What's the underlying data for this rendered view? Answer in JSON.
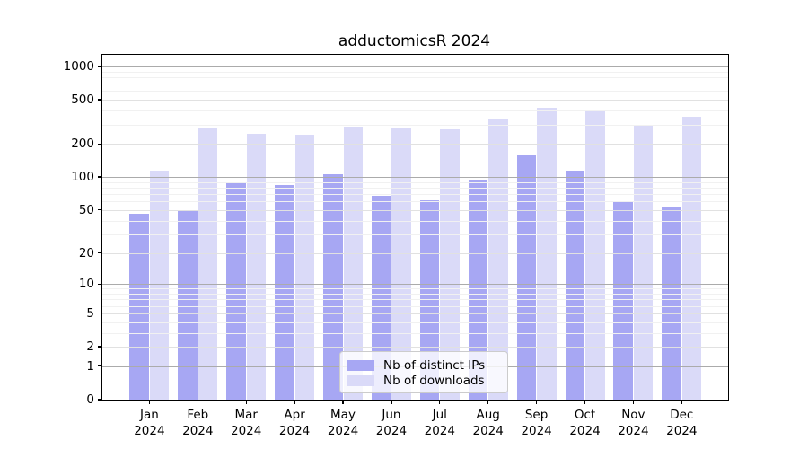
{
  "figure": {
    "background": "#ffffff"
  },
  "chart_data": {
    "type": "bar",
    "title": "adductomicsR 2024",
    "year": "2024",
    "categories": [
      "Jan",
      "Feb",
      "Mar",
      "Apr",
      "May",
      "Jun",
      "Jul",
      "Aug",
      "Sep",
      "Oct",
      "Nov",
      "Dec"
    ],
    "series": [
      {
        "name": "Nb of distinct IPs",
        "color": "#a7a7f3",
        "values": [
          46,
          49,
          90,
          84,
          107,
          68,
          62,
          95,
          157,
          115,
          59,
          54
        ]
      },
      {
        "name": "Nb of downloads",
        "color": "#dadaf8",
        "values": [
          114,
          283,
          249,
          242,
          286,
          283,
          273,
          330,
          428,
          400,
          300,
          349
        ]
      }
    ],
    "xlabel": "",
    "ylabel": "",
    "yscale": "log1p",
    "ylim": [
      0,
      1270
    ],
    "yticks": [
      0,
      1,
      2,
      5,
      10,
      20,
      50,
      100,
      200,
      500,
      1000
    ],
    "ytick_major": [
      1,
      10,
      100,
      1000
    ],
    "minor_gridlines": [
      3,
      4,
      6,
      7,
      8,
      9,
      30,
      40,
      60,
      70,
      80,
      90,
      300,
      400,
      600,
      700,
      800,
      900
    ],
    "grid": true,
    "legend_position": "inside-bottom-center"
  },
  "legend": {
    "items": [
      {
        "label": "Nb of distinct IPs",
        "color": "#a7a7f3"
      },
      {
        "label": "Nb of downloads",
        "color": "#dadaf8"
      }
    ]
  }
}
